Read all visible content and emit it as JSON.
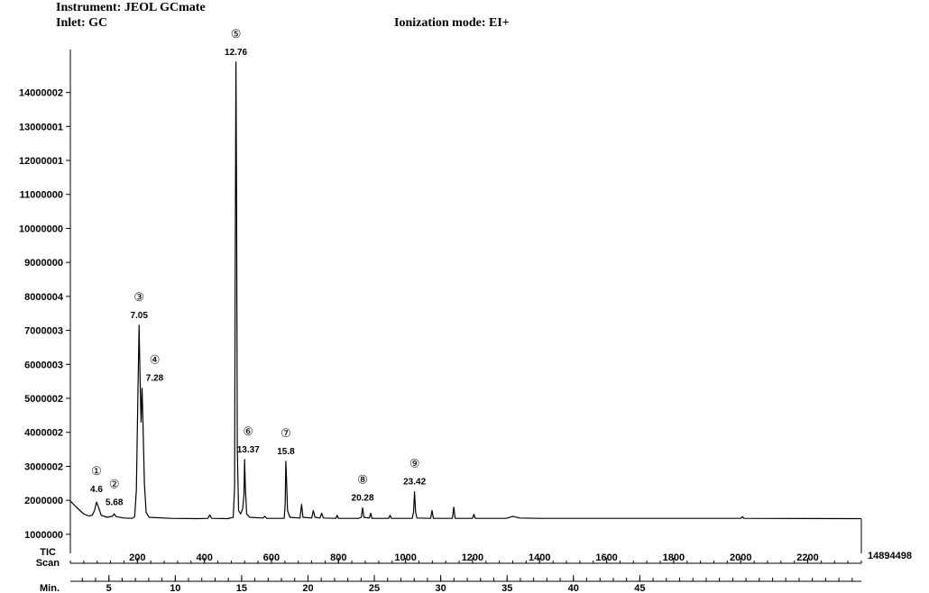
{
  "header": {
    "instrument": "Instrument: JEOL GCmate",
    "inlet": "Inlet: GC",
    "ionization": "Ionization mode: EI+"
  },
  "chart_data": {
    "type": "line",
    "title": "",
    "xlabel": "",
    "ylabel": "",
    "y_ticks": [
      "1000000",
      "2000000",
      "3000002",
      "4000002",
      "5000002",
      "6000003",
      "7000003",
      "8000004",
      "9000000",
      "10000000",
      "11000000",
      "12000001",
      "13000001",
      "14000002"
    ],
    "y_tick_values": [
      1000000,
      2000000,
      3000002,
      4000002,
      5000002,
      6000003,
      7000003,
      8000004,
      9000000,
      10000000,
      11000000,
      12000001,
      13000001,
      14000002
    ],
    "ylim": [
      440000,
      15050000
    ],
    "scan_ticks": [
      200,
      400,
      600,
      800,
      1000,
      1200,
      1400,
      1600,
      1800,
      2000,
      2200
    ],
    "xlim_scan": [
      0,
      2360
    ],
    "minute_ticks": [
      5,
      10,
      15,
      20,
      25,
      30,
      35,
      40,
      45
    ],
    "scan_per_min": 39.6,
    "scan_offset": -83,
    "row_labels": {
      "tic": "TIC",
      "scan": "Scan",
      "min": "Min."
    },
    "max_intensity_label": "14894498",
    "baseline": 1450000,
    "series": [
      {
        "name": "TIC",
        "points": [
          [
            0,
            1980000
          ],
          [
            20,
            1780000
          ],
          [
            40,
            1600000
          ],
          [
            55,
            1540000
          ],
          [
            65,
            1560000
          ],
          [
            72,
            1700000
          ],
          [
            78,
            1950000
          ],
          [
            84,
            1800000
          ],
          [
            92,
            1560000
          ],
          [
            110,
            1500000
          ],
          [
            125,
            1530000
          ],
          [
            131,
            1600000
          ],
          [
            137,
            1520000
          ],
          [
            160,
            1480000
          ],
          [
            185,
            1470000
          ],
          [
            192,
            1520000
          ],
          [
            197,
            2300000
          ],
          [
            201,
            4800000
          ],
          [
            205,
            7150000
          ],
          [
            208,
            5600000
          ],
          [
            211,
            4300000
          ],
          [
            214,
            5300000
          ],
          [
            217,
            4200000
          ],
          [
            221,
            2500000
          ],
          [
            226,
            1650000
          ],
          [
            235,
            1500000
          ],
          [
            300,
            1470000
          ],
          [
            380,
            1460000
          ],
          [
            410,
            1470000
          ],
          [
            416,
            1570000
          ],
          [
            422,
            1470000
          ],
          [
            470,
            1460000
          ],
          [
            486,
            1500000
          ],
          [
            490,
            2400000
          ],
          [
            492,
            9000000
          ],
          [
            494,
            14894498
          ],
          [
            496,
            11000000
          ],
          [
            498,
            3500000
          ],
          [
            502,
            1700000
          ],
          [
            508,
            1600000
          ],
          [
            514,
            1750000
          ],
          [
            518,
            2150000
          ],
          [
            520,
            3200000
          ],
          [
            522,
            2400000
          ],
          [
            526,
            1600000
          ],
          [
            535,
            1500000
          ],
          [
            575,
            1480000
          ],
          [
            580,
            1530000
          ],
          [
            586,
            1470000
          ],
          [
            638,
            1470000
          ],
          [
            641,
            1900000
          ],
          [
            643,
            3150000
          ],
          [
            645,
            2600000
          ],
          [
            648,
            1700000
          ],
          [
            655,
            1500000
          ],
          [
            685,
            1480000
          ],
          [
            690,
            1880000
          ],
          [
            694,
            1500000
          ],
          [
            720,
            1480000
          ],
          [
            725,
            1700000
          ],
          [
            730,
            1500000
          ],
          [
            745,
            1480000
          ],
          [
            750,
            1620000
          ],
          [
            755,
            1480000
          ],
          [
            792,
            1470000
          ],
          [
            796,
            1560000
          ],
          [
            800,
            1470000
          ],
          [
            860,
            1470000
          ],
          [
            868,
            1500000
          ],
          [
            872,
            1780000
          ],
          [
            876,
            1500000
          ],
          [
            892,
            1480000
          ],
          [
            896,
            1620000
          ],
          [
            900,
            1470000
          ],
          [
            950,
            1470000
          ],
          [
            954,
            1560000
          ],
          [
            958,
            1470000
          ],
          [
            1020,
            1470000
          ],
          [
            1024,
            1650000
          ],
          [
            1027,
            2250000
          ],
          [
            1030,
            1650000
          ],
          [
            1034,
            1480000
          ],
          [
            1075,
            1470000
          ],
          [
            1079,
            1700000
          ],
          [
            1083,
            1470000
          ],
          [
            1140,
            1470000
          ],
          [
            1144,
            1800000
          ],
          [
            1148,
            1470000
          ],
          [
            1200,
            1470000
          ],
          [
            1204,
            1590000
          ],
          [
            1208,
            1470000
          ],
          [
            1300,
            1470000
          ],
          [
            1320,
            1530000
          ],
          [
            1340,
            1480000
          ],
          [
            1400,
            1470000
          ],
          [
            2000,
            1470000
          ],
          [
            2005,
            1520000
          ],
          [
            2010,
            1470000
          ],
          [
            2360,
            1460000
          ]
        ]
      }
    ],
    "peaks": [
      {
        "id": "peak-1",
        "symbol": "①",
        "label": "4.6",
        "scan": 78,
        "top": 2030000
      },
      {
        "id": "peak-2",
        "symbol": "②",
        "label": "5.68",
        "scan": 131,
        "top": 1640000
      },
      {
        "id": "peak-3",
        "symbol": "③",
        "label": "7.05",
        "scan": 205,
        "top": 7150000
      },
      {
        "id": "peak-4",
        "symbol": "④",
        "label": "7.28",
        "scan": 214,
        "top": 5300000
      },
      {
        "id": "peak-5",
        "symbol": "⑤",
        "label": "12.76",
        "scan": 494,
        "top": 14894498
      },
      {
        "id": "peak-6",
        "symbol": "⑥",
        "label": "13.37",
        "scan": 520,
        "top": 3200000
      },
      {
        "id": "peak-7",
        "symbol": "⑦",
        "label": "15.8",
        "scan": 643,
        "top": 3150000
      },
      {
        "id": "peak-8",
        "symbol": "⑧",
        "label": "20.28",
        "scan": 872,
        "top": 1780000
      },
      {
        "id": "peak-9",
        "symbol": "⑨",
        "label": "23.42",
        "scan": 1027,
        "top": 2250000
      }
    ]
  }
}
